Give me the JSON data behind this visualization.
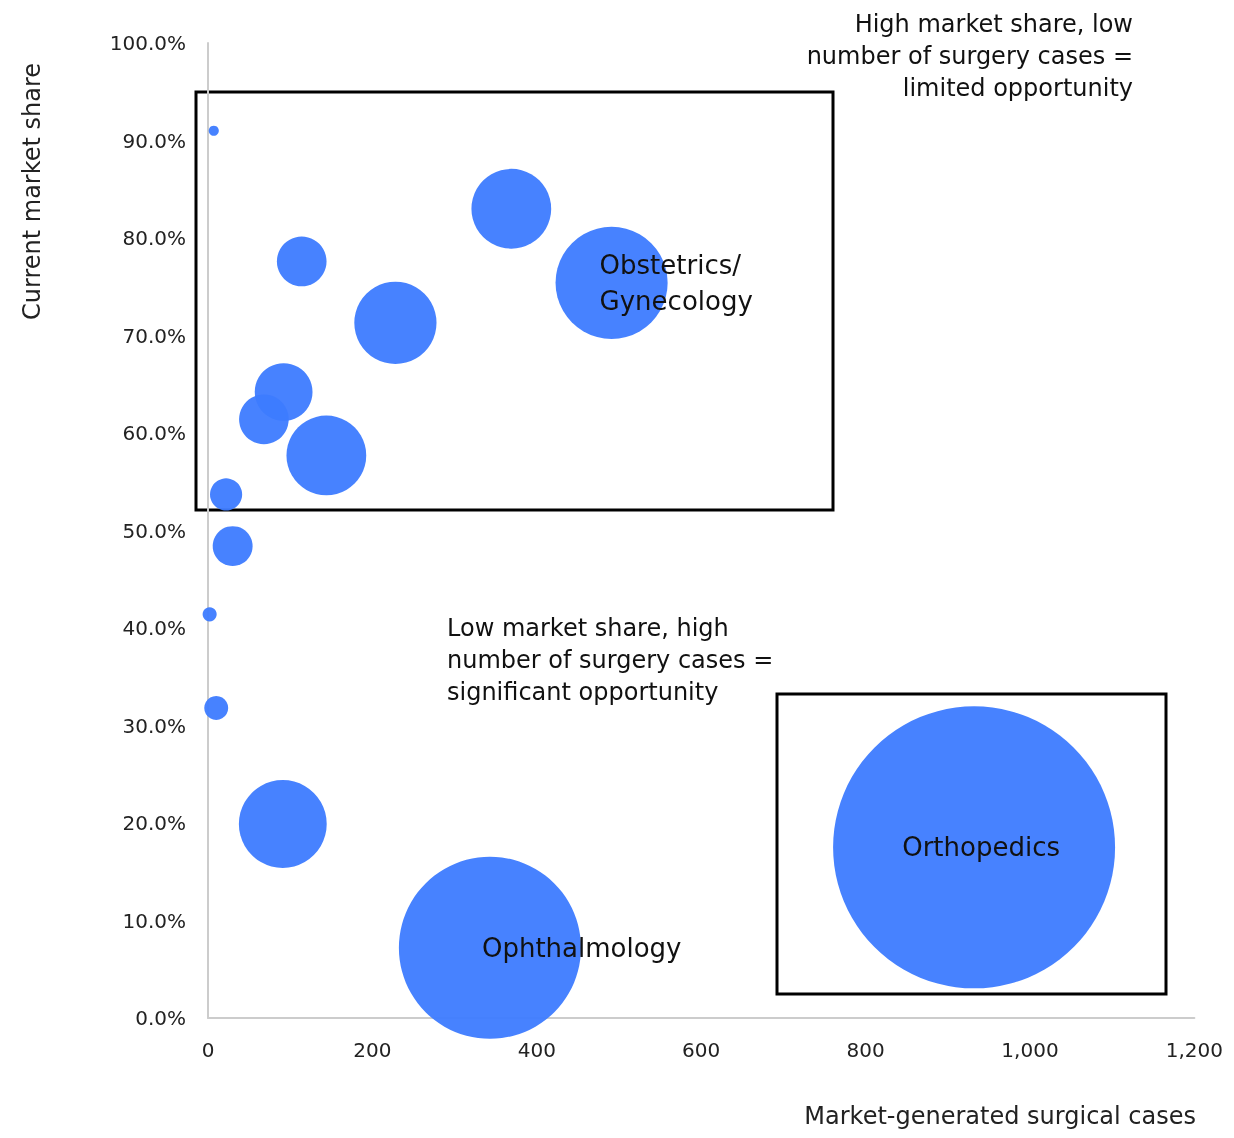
{
  "chart_data": {
    "type": "bubble",
    "xlabel": "Market-generated surgical cases",
    "ylabel": "Current market share",
    "x": [
      7,
      369,
      114,
      491,
      228,
      92,
      68,
      144,
      22,
      30,
      2,
      10,
      91,
      343,
      932
    ],
    "values": [
      91.0,
      83.0,
      77.6,
      75.4,
      71.3,
      64.2,
      61.4,
      57.7,
      53.7,
      48.4,
      41.4,
      31.8,
      19.9,
      7.2,
      17.5
    ],
    "sizes": [
      0.0013,
      0.08,
      0.031,
      0.158,
      0.085,
      0.042,
      0.031,
      0.08,
      0.013,
      0.02,
      0.0025,
      0.0072,
      0.097,
      0.417,
      1
    ],
    "color": "#3d7bff",
    "xlim": [
      0,
      1200
    ],
    "xticks": [
      0,
      200,
      400,
      600,
      800,
      {
        "value": 1000,
        "label": "1,000"
      },
      {
        "value": 1200,
        "label": "1,200"
      }
    ],
    "ylim": [
      0,
      100
    ],
    "yticks": [
      {
        "value": 0,
        "label": "0.0%"
      },
      {
        "value": 10,
        "label": "10.0%"
      },
      {
        "value": 20,
        "label": "20.0%"
      },
      {
        "value": 30,
        "label": "30.0%"
      },
      {
        "value": 40,
        "label": "40.0%"
      },
      {
        "value": 50,
        "label": "50.0%"
      },
      {
        "value": 60,
        "label": "60.0%"
      },
      {
        "value": 70,
        "label": "70.0%"
      },
      {
        "value": 80,
        "label": "80.0%"
      },
      {
        "value": 90,
        "label": "90.0%"
      },
      {
        "value": 100,
        "label": "100.0%"
      }
    ],
    "grid": false,
    "annotations": [
      "High market share, low\nnumber of surgery cases =\nlimited opportunity",
      "Low market share, high\nnumber of surgery cases =\nsignificant opportunity",
      {
        "text": "Obstetrics/\nGynecology",
        "x": 491,
        "y": 75.4
      },
      {
        "text": "Ophthalmology",
        "x": 343,
        "y": 7.2
      },
      {
        "text": "Orthopedics",
        "x": 932,
        "y": 17.5
      }
    ]
  }
}
